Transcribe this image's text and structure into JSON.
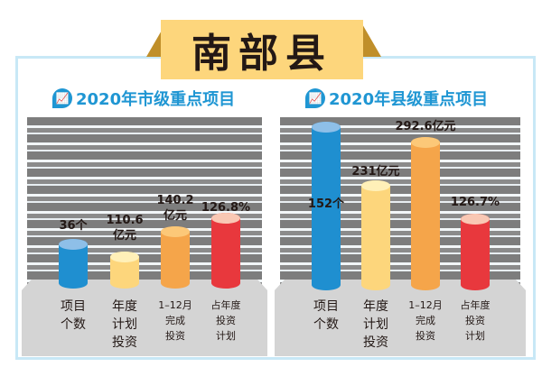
{
  "banner": {
    "title": "南部县"
  },
  "chart_data": [
    {
      "type": "bar",
      "title": "2020年市级重点项目",
      "categories": [
        "项目\n个数",
        "年度\n计划\n投资",
        "1–12月\n完成\n投资",
        "占年度\n投资\n计划"
      ],
      "values": [
        36,
        110.6,
        140.2,
        126.8
      ],
      "data_labels": [
        "36个",
        "110.6\n亿元",
        "140.2\n亿元",
        "126.8%"
      ],
      "colors": [
        "#1f8fd0",
        "#fdd67c",
        "#f5a54a",
        "#e8383d"
      ]
    },
    {
      "type": "bar",
      "title": "2020年县级重点项目",
      "categories": [
        "项目\n个数",
        "年度\n计划\n投资",
        "1–12月\n完成\n投资",
        "占年度\n投资\n计划"
      ],
      "values": [
        152,
        231,
        292.6,
        126.7
      ],
      "data_labels": [
        "152个",
        "231亿元",
        "292.6亿元",
        "126.7%"
      ],
      "colors": [
        "#1f8fd0",
        "#fdd67c",
        "#f5a54a",
        "#e8383d"
      ]
    }
  ],
  "icon": "chart-icon"
}
